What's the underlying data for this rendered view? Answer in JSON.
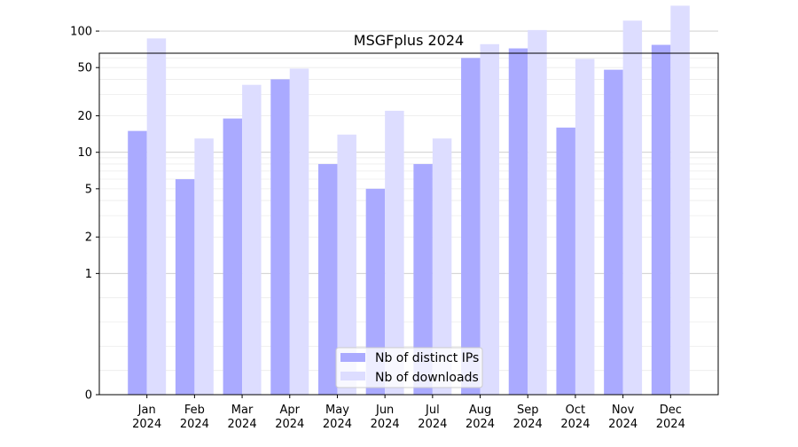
{
  "chart_data": {
    "type": "bar",
    "title": "MSGFplus 2024",
    "xlabel": "",
    "ylabel": "",
    "yscale": "symlog",
    "ylim": [
      0,
      1200
    ],
    "yticks": [
      0,
      1,
      2,
      5,
      10,
      20,
      50,
      100,
      200,
      500,
      1000
    ],
    "grid": "horizontal",
    "legend_position": "lower-center",
    "categories": [
      {
        "month": "Jan",
        "year": "2024"
      },
      {
        "month": "Feb",
        "year": "2024"
      },
      {
        "month": "Mar",
        "year": "2024"
      },
      {
        "month": "Apr",
        "year": "2024"
      },
      {
        "month": "May",
        "year": "2024"
      },
      {
        "month": "Jun",
        "year": "2024"
      },
      {
        "month": "Jul",
        "year": "2024"
      },
      {
        "month": "Aug",
        "year": "2024"
      },
      {
        "month": "Sep",
        "year": "2024"
      },
      {
        "month": "Oct",
        "year": "2024"
      },
      {
        "month": "Nov",
        "year": "2024"
      },
      {
        "month": "Dec",
        "year": "2024"
      }
    ],
    "series": [
      {
        "name": "Nb of distinct IPs",
        "color": "#aaaaff",
        "values": [
          15,
          6,
          19,
          40,
          8,
          5,
          8,
          60,
          72,
          16,
          48,
          77
        ]
      },
      {
        "name": "Nb of downloads",
        "color": "#ddddff",
        "values": [
          87,
          13,
          36,
          49,
          14,
          22,
          13,
          78,
          102,
          59,
          122,
          162
        ]
      }
    ]
  }
}
